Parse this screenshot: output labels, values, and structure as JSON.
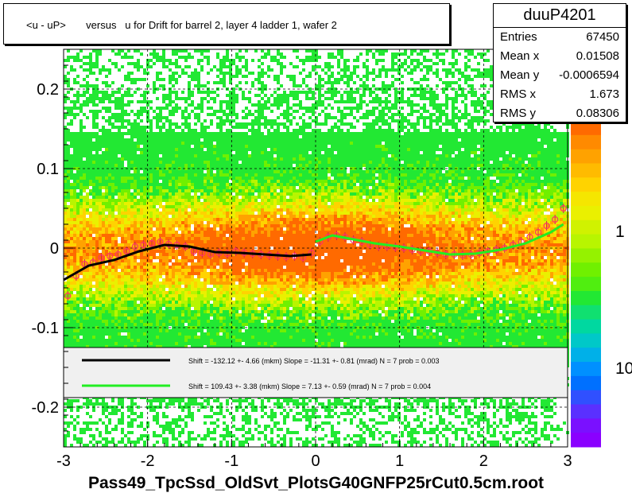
{
  "title": "<u - uP>       versus   u for Drift for barrel 2, layer 4 ladder 1, wafer 2",
  "xfile_label": "Pass49_TpcSsd_OldSvt_PlotsG40GNFP25rCut0.5cm.root",
  "stats": {
    "name": "duuP4201",
    "rows": [
      {
        "label": "Entries",
        "value": "67450"
      },
      {
        "label": "Mean x",
        "value": "0.01508"
      },
      {
        "label": "Mean y",
        "value": "-0.0006594"
      },
      {
        "label": "RMS x",
        "value": "1.673"
      },
      {
        "label": "RMS y",
        "value": "0.08306"
      }
    ]
  },
  "legend": [
    {
      "color": "#000000",
      "text": "Shift =  -132.12 +- 4.66 (mkm) Slope =    -11.31 +- 0.81 (mrad)  N = 7 prob = 0.003"
    },
    {
      "color": "#22ee22",
      "text": "Shift =   109.43 +- 3.38 (mkm) Slope =    7.13 +- 0.59 (mrad)  N = 7 prob = 0.004"
    }
  ],
  "colors": {
    "fit_left": "#000000",
    "fit_right": "#22ee22",
    "points": "#ff3366",
    "frame": "#000000"
  },
  "chart_data": {
    "type": "heatmap",
    "xlim": [
      -3,
      3
    ],
    "ylim": [
      -0.25,
      0.25
    ],
    "x_ticks": [
      "-3",
      "-2",
      "-1",
      "0",
      "1",
      "2",
      "3"
    ],
    "y_ticks": [
      "-0.2",
      "-0.1",
      "0",
      "0.1",
      "0.2"
    ],
    "z_scale": "log",
    "z_ticks": [
      "1",
      "10"
    ],
    "grid": true,
    "profile_points": {
      "x": [
        -2.95,
        -2.85,
        -2.75,
        -2.65,
        -2.55,
        -2.45,
        -2.35,
        -2.25,
        -2.15,
        -2.05,
        -1.95,
        -1.85,
        -1.75,
        -1.65,
        -1.55,
        -1.45,
        -1.35,
        -1.25,
        -1.15,
        -1.05,
        -0.95,
        -0.85,
        -0.75,
        -0.65,
        -0.55,
        -0.45,
        -0.35,
        -0.25,
        -0.15,
        -0.05,
        0.05,
        0.15,
        0.25,
        0.35,
        0.45,
        0.55,
        0.65,
        0.75,
        0.85,
        0.95,
        1.05,
        1.15,
        1.25,
        1.35,
        1.45,
        1.55,
        1.65,
        1.75,
        1.85,
        1.95,
        2.05,
        2.15,
        2.25,
        2.35,
        2.45,
        2.55,
        2.65,
        2.75,
        2.85,
        2.95
      ],
      "y": [
        -0.06,
        -0.035,
        -0.02,
        -0.018,
        -0.012,
        -0.01,
        -0.008,
        -0.004,
        0.002,
        0.004,
        0.006,
        0.008,
        0.005,
        0.004,
        0.002,
        -0.004,
        -0.006,
        -0.008,
        -0.006,
        -0.007,
        -0.004,
        -0.006,
        -0.007,
        -0.008,
        -0.009,
        -0.01,
        -0.011,
        -0.01,
        -0.012,
        -0.006,
        0.008,
        0.014,
        0.016,
        0.014,
        0.01,
        0.008,
        0.004,
        0.002,
        0.002,
        0.001,
        0.0,
        -0.002,
        -0.004,
        -0.004,
        -0.006,
        -0.008,
        -0.008,
        -0.009,
        -0.008,
        -0.006,
        -0.004,
        -0.002,
        0.0,
        0.004,
        0.008,
        0.014,
        0.02,
        0.028,
        0.036,
        0.05
      ]
    },
    "fits": [
      {
        "x": [
          -3.0,
          -2.7,
          -2.4,
          -2.1,
          -1.8,
          -1.5,
          -1.2,
          -0.9,
          -0.6,
          -0.3,
          -0.05
        ],
        "y": [
          -0.04,
          -0.022,
          -0.015,
          -0.004,
          0.004,
          0.002,
          -0.005,
          -0.006,
          -0.008,
          -0.01,
          -0.008
        ]
      },
      {
        "x": [
          0.0,
          0.2,
          0.4,
          0.7,
          1.0,
          1.3,
          1.6,
          1.9,
          2.2,
          2.5,
          2.8,
          2.95
        ],
        "y": [
          0.008,
          0.016,
          0.012,
          0.006,
          0.002,
          -0.003,
          -0.008,
          -0.007,
          -0.002,
          0.006,
          0.02,
          0.03
        ]
      }
    ]
  }
}
